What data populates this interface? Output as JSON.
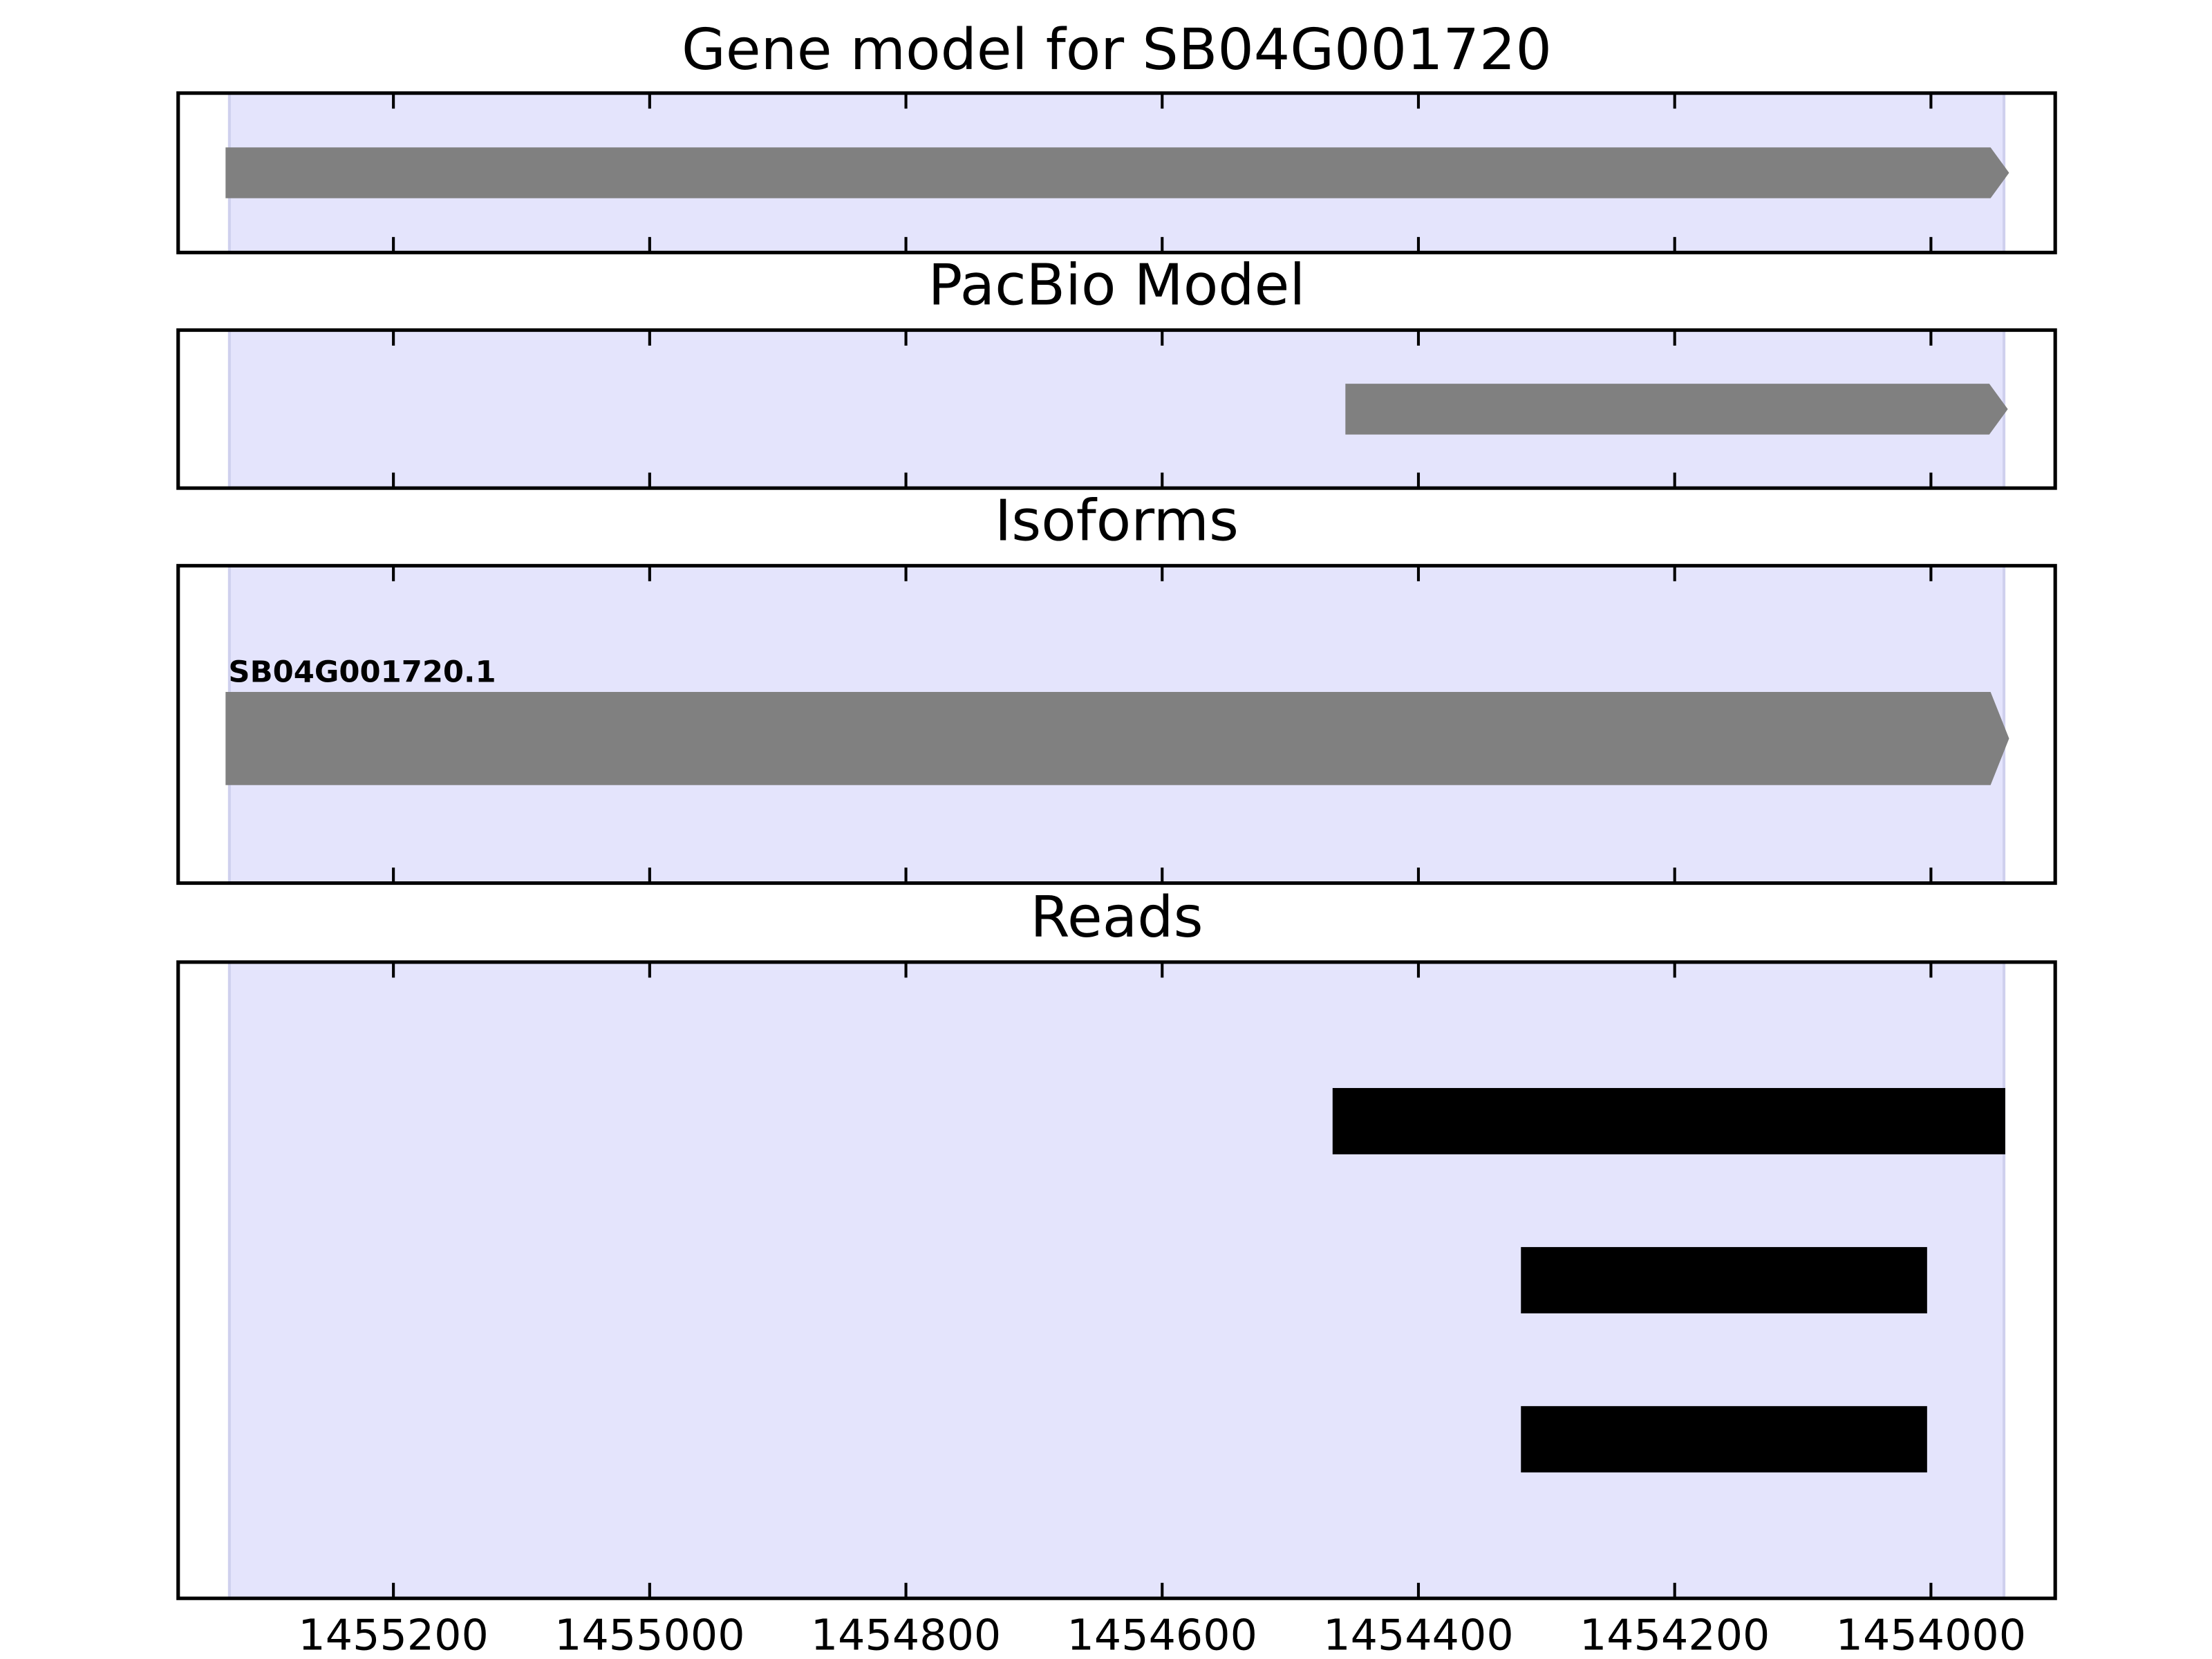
{
  "chart_data": [
    {
      "type": "track",
      "title": "Gene model for SB04G001720",
      "xlim": [
        1455368,
        1453903
      ],
      "xticks": [
        1455200,
        1455000,
        1454800,
        1454600,
        1454400,
        1454200,
        1454000
      ],
      "highlight": [
        1455328,
        1453943
      ],
      "highlight_color": "#e4e4fc",
      "shape": "arrow",
      "color": "#808080",
      "features": [
        {
          "start": 1455331,
          "end": 1453939
        }
      ]
    },
    {
      "type": "track",
      "title": "PacBio Model",
      "xlim": [
        1455368,
        1453903
      ],
      "xticks": [
        1455200,
        1455000,
        1454800,
        1454600,
        1454400,
        1454200,
        1454000
      ],
      "highlight": [
        1455328,
        1453943
      ],
      "highlight_color": "#e4e4fc",
      "shape": "arrow",
      "color": "#808080",
      "features": [
        {
          "start": 1454457,
          "end": 1453940
        }
      ]
    },
    {
      "type": "track",
      "title": "Isoforms",
      "xlim": [
        1455368,
        1453903
      ],
      "xticks": [
        1455200,
        1455000,
        1454800,
        1454600,
        1454400,
        1454200,
        1454000
      ],
      "highlight": [
        1455328,
        1453943
      ],
      "highlight_color": "#e4e4fc",
      "shape": "arrow",
      "color": "#808080",
      "features": [
        {
          "name": "SB04G001720.1",
          "start": 1455331,
          "end": 1453939
        }
      ]
    },
    {
      "type": "track",
      "title": "Reads",
      "xlim": [
        1455368,
        1453903
      ],
      "xticks": [
        1455200,
        1455000,
        1454800,
        1454600,
        1454400,
        1454200,
        1454000
      ],
      "highlight": [
        1455328,
        1453943
      ],
      "highlight_color": "#e4e4fc",
      "shape": "box",
      "color": "#000000",
      "tick_labels": true,
      "features": [
        {
          "start": 1454467,
          "end": 1453942
        },
        {
          "start": 1454320,
          "end": 1454003
        },
        {
          "start": 1454320,
          "end": 1454003
        }
      ]
    }
  ]
}
